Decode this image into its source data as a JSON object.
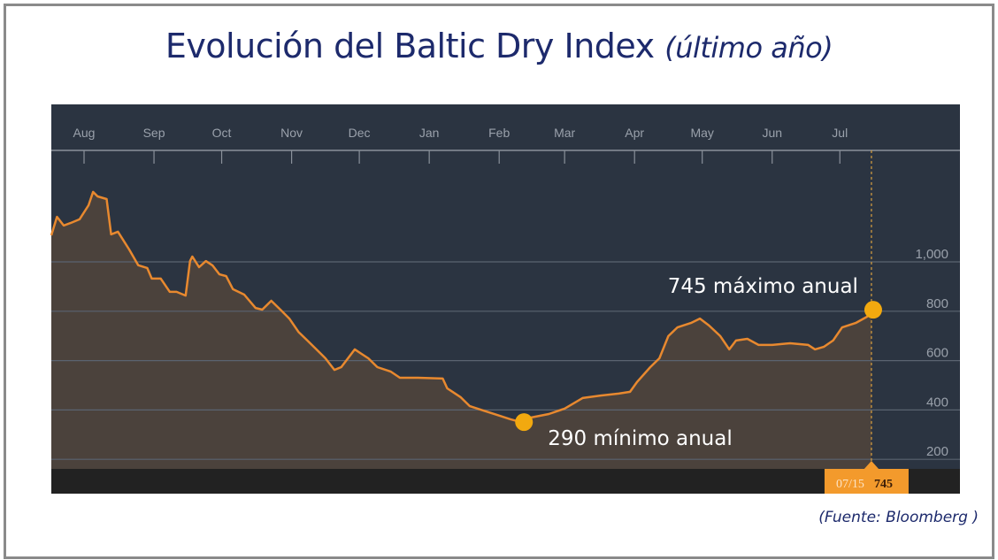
{
  "title": {
    "main": "Evolución del Baltic Dry Index",
    "sub": "(último año)"
  },
  "source": "(Fuente: Bloomberg )",
  "colors": {
    "title": "#1d2a6c",
    "plot_bg": "#2b3441",
    "line": "#e8892f",
    "fill": "#4b423c",
    "marker": "#f2a90f",
    "badge": "#f39a2c"
  },
  "chart_data": {
    "type": "area",
    "title": "Evolución del Baltic Dry Index (último año)",
    "xlabel": "",
    "ylabel": "",
    "x_ticks": [
      "Aug",
      "Sep",
      "Oct",
      "Nov",
      "Dec",
      "Jan",
      "Feb",
      "Mar",
      "Apr",
      "May",
      "Jun",
      "Jul"
    ],
    "y_ticks": [
      "200",
      "400",
      "600",
      "800",
      "1,000"
    ],
    "y_tick_values": [
      200,
      400,
      600,
      800,
      1000
    ],
    "ylim": [
      0,
      1250
    ],
    "xlim": [
      "2015-07-17",
      "2016-07-15"
    ],
    "grid": true,
    "y_axis_position": "right",
    "points": [
      [
        "2015-07-17",
        1050
      ],
      [
        "2015-07-20",
        1125
      ],
      [
        "2015-07-23",
        1090
      ],
      [
        "2015-07-26",
        1100
      ],
      [
        "2015-07-30",
        1115
      ],
      [
        "2015-08-03",
        1172
      ],
      [
        "2015-08-05",
        1226
      ],
      [
        "2015-08-07",
        1208
      ],
      [
        "2015-08-11",
        1197
      ],
      [
        "2015-08-13",
        1054
      ],
      [
        "2015-08-16",
        1065
      ],
      [
        "2015-08-21",
        993
      ],
      [
        "2015-08-25",
        929
      ],
      [
        "2015-08-29",
        918
      ],
      [
        "2015-08-31",
        875
      ],
      [
        "2015-09-04",
        875
      ],
      [
        "2015-09-08",
        821
      ],
      [
        "2015-09-11",
        821
      ],
      [
        "2015-09-15",
        806
      ],
      [
        "2015-09-17",
        946
      ],
      [
        "2015-09-18",
        964
      ],
      [
        "2015-09-21",
        921
      ],
      [
        "2015-09-24",
        946
      ],
      [
        "2015-09-27",
        928
      ],
      [
        "2015-09-30",
        892
      ],
      [
        "2015-10-03",
        885
      ],
      [
        "2015-10-06",
        832
      ],
      [
        "2015-10-11",
        810
      ],
      [
        "2015-10-16",
        756
      ],
      [
        "2015-10-19",
        749
      ],
      [
        "2015-10-23",
        785
      ],
      [
        "2015-10-27",
        749
      ],
      [
        "2015-10-31",
        713
      ],
      [
        "2015-11-04",
        659
      ],
      [
        "2015-11-08",
        624
      ],
      [
        "2015-11-12",
        588
      ],
      [
        "2015-11-16",
        552
      ],
      [
        "2015-11-20",
        505
      ],
      [
        "2015-11-23",
        516
      ],
      [
        "2015-11-26",
        552
      ],
      [
        "2015-11-29",
        588
      ],
      [
        "2015-12-02",
        570
      ],
      [
        "2015-12-05",
        552
      ],
      [
        "2015-12-09",
        516
      ],
      [
        "2015-12-15",
        498
      ],
      [
        "2015-12-19",
        473
      ],
      [
        "2015-12-27",
        473
      ],
      [
        "2016-01-07",
        470
      ],
      [
        "2016-01-09",
        430
      ],
      [
        "2016-01-15",
        394
      ],
      [
        "2016-01-19",
        358
      ],
      [
        "2016-01-25",
        340
      ],
      [
        "2016-01-31",
        323
      ],
      [
        "2016-02-06",
        305
      ],
      [
        "2016-02-12",
        290
      ],
      [
        "2016-02-15",
        312
      ],
      [
        "2016-02-23",
        326
      ],
      [
        "2016-03-01",
        348
      ],
      [
        "2016-03-09",
        391
      ],
      [
        "2016-03-17",
        401
      ],
      [
        "2016-03-25",
        409
      ],
      [
        "2016-03-30",
        416
      ],
      [
        "2016-04-02",
        455
      ],
      [
        "2016-04-08",
        516
      ],
      [
        "2016-04-12",
        552
      ],
      [
        "2016-04-16",
        642
      ],
      [
        "2016-04-20",
        677
      ],
      [
        "2016-04-26",
        695
      ],
      [
        "2016-04-30",
        713
      ],
      [
        "2016-05-04",
        685
      ],
      [
        "2016-05-09",
        642
      ],
      [
        "2016-05-13",
        588
      ],
      [
        "2016-05-16",
        624
      ],
      [
        "2016-05-21",
        631
      ],
      [
        "2016-05-26",
        606
      ],
      [
        "2016-06-01",
        606
      ],
      [
        "2016-06-09",
        613
      ],
      [
        "2016-06-17",
        606
      ],
      [
        "2016-06-20",
        588
      ],
      [
        "2016-06-24",
        599
      ],
      [
        "2016-06-28",
        624
      ],
      [
        "2016-07-02",
        677
      ],
      [
        "2016-07-08",
        695
      ],
      [
        "2016-07-13",
        720
      ],
      [
        "2016-07-15",
        745
      ]
    ],
    "annotations": [
      {
        "date": "2016-07-15",
        "value": 745,
        "text": "745 máximo anual"
      },
      {
        "date": "2016-02-12",
        "value": 290,
        "text": "290 mínimo anual"
      }
    ],
    "cursor": {
      "date_label": "07/15",
      "value_label": "745"
    }
  }
}
